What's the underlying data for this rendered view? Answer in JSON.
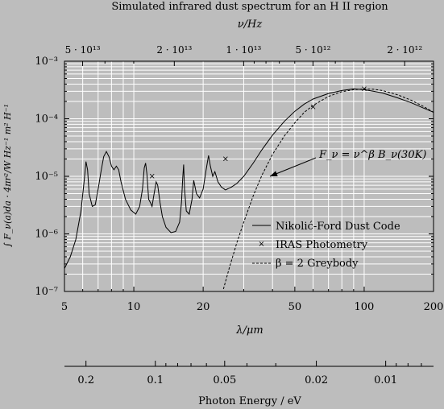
{
  "chart_data": {
    "type": "line",
    "title": "Simulated infrared dust spectrum for an H II region",
    "xlabel": "λ/μm",
    "top_axis_label": "ν/Hz",
    "ylabel": "∫ F_ν(a)da · 4πr²/W Hz⁻¹ m² H⁻¹",
    "bottom_axis2_label": "Photon Energy / eV",
    "x_scale": "log",
    "y_scale": "log",
    "xlim": [
      5,
      200
    ],
    "ylim": [
      1e-07,
      0.001
    ],
    "grid": true,
    "x_ticks": [
      {
        "value": 5,
        "label": "5"
      },
      {
        "value": 10,
        "label": "10"
      },
      {
        "value": 20,
        "label": "20"
      },
      {
        "value": 50,
        "label": "50"
      },
      {
        "value": 100,
        "label": "100"
      },
      {
        "value": 200,
        "label": "200"
      }
    ],
    "y_ticks": [
      {
        "value": 1e-07,
        "label": "10⁻⁷"
      },
      {
        "value": 1e-06,
        "label": "10⁻⁶"
      },
      {
        "value": 1e-05,
        "label": "10⁻⁵"
      },
      {
        "value": 0.0001,
        "label": "10⁻⁴"
      },
      {
        "value": 0.001,
        "label": "10⁻³"
      }
    ],
    "top_ticks": [
      {
        "value": 50000000000000.0,
        "label": "5 · 10¹³"
      },
      {
        "value": 20000000000000.0,
        "label": "2 · 10¹³"
      },
      {
        "value": 10000000000000.0,
        "label": "1 · 10¹³"
      },
      {
        "value": 5000000000000.0,
        "label": "5 · 10¹²"
      },
      {
        "value": 2000000000000.0,
        "label": "2 · 10¹²"
      }
    ],
    "energy_ticks": [
      {
        "value": 0.2,
        "label": "0.2"
      },
      {
        "value": 0.1,
        "label": "0.1"
      },
      {
        "value": 0.05,
        "label": "0.05"
      },
      {
        "value": 0.02,
        "label": "0.02"
      },
      {
        "value": 0.01,
        "label": "0.01"
      }
    ],
    "series": [
      {
        "name": "Nikolić-Ford Dust Code",
        "style": "solid",
        "x": [
          5.0,
          5.3,
          5.6,
          5.9,
          6.1,
          6.2,
          6.3,
          6.4,
          6.6,
          6.8,
          7.0,
          7.2,
          7.4,
          7.6,
          7.8,
          8.0,
          8.2,
          8.4,
          8.6,
          8.8,
          9.2,
          9.7,
          10.2,
          10.6,
          10.9,
          11.1,
          11.25,
          11.4,
          11.6,
          11.8,
          12.0,
          12.2,
          12.5,
          12.7,
          13.0,
          13.3,
          13.8,
          14.5,
          15.2,
          15.8,
          16.1,
          16.3,
          16.45,
          16.6,
          16.9,
          17.4,
          17.9,
          18.2,
          18.7,
          19.3,
          20.0,
          20.6,
          21.1,
          21.5,
          22.0,
          22.5,
          23.2,
          24.0,
          25.0,
          26.5,
          28.0,
          30.0,
          33.0,
          36.0,
          40.0,
          45.0,
          50.0,
          55.0,
          60.0,
          70.0,
          80.0,
          90.0,
          100.0,
          110.0,
          120.0,
          140.0,
          160.0,
          180.0,
          200.0
        ],
        "y": [
          2.5e-07,
          4e-07,
          8e-07,
          2.5e-06,
          9e-06,
          1.8e-05,
          1.3e-05,
          5e-06,
          3e-06,
          3.2e-06,
          6e-06,
          1.2e-05,
          2.2e-05,
          2.7e-05,
          2.2e-05,
          1.5e-05,
          1.3e-05,
          1.5e-05,
          1.3e-05,
          8e-06,
          4e-06,
          2.6e-06,
          2.2e-06,
          3e-06,
          6e-06,
          1.4e-05,
          1.7e-05,
          1.1e-05,
          4e-06,
          3.5e-06,
          3e-06,
          4.5e-06,
          8e-06,
          7e-06,
          3.5e-06,
          2e-06,
          1.3e-06,
          1.05e-06,
          1.1e-06,
          1.6e-06,
          3.5e-06,
          9e-06,
          1.6e-05,
          6e-06,
          2.5e-06,
          2.2e-06,
          4e-06,
          8.5e-06,
          5e-06,
          4.2e-06,
          6e-06,
          1.3e-05,
          2.3e-05,
          1.5e-05,
          1e-05,
          1.2e-05,
          8e-06,
          6.5e-06,
          5.8e-06,
          6.5e-06,
          7.5e-06,
          1e-05,
          1.7e-05,
          2.9e-05,
          5.2e-05,
          9e-05,
          0.000135,
          0.00018,
          0.00022,
          0.000275,
          0.00031,
          0.00033,
          0.00032,
          0.0003,
          0.00028,
          0.00023,
          0.00019,
          0.000155,
          0.00013
        ]
      },
      {
        "name": "IRAS Photometry",
        "style": "marker-x",
        "x": [
          12,
          25,
          60,
          100
        ],
        "y": [
          1e-05,
          2e-05,
          0.00016,
          0.00033
        ]
      },
      {
        "name": "β = 2 Greybody",
        "style": "dashed",
        "x": [
          24.5,
          26.0,
          28.0,
          30.0,
          33.0,
          36.0,
          40.0,
          45.0,
          50.0,
          55.0,
          60.0,
          70.0,
          80.0,
          90.0,
          100.0,
          110.0,
          120.0,
          140.0,
          160.0,
          180.0,
          200.0
        ],
        "y": [
          1.1e-07,
          2.6e-07,
          7e-07,
          1.6e-06,
          4.6e-06,
          1.05e-05,
          2.4e-05,
          5e-05,
          8.5e-05,
          0.00013,
          0.00017,
          0.000245,
          0.000295,
          0.00032,
          0.00033,
          0.000325,
          0.00031,
          0.00026,
          0.00021,
          0.000165,
          0.00013
        ]
      }
    ],
    "annotation": {
      "text": "F_ν = ν^β B_ν(30K)",
      "points_to": {
        "x": 39,
        "y": 1e-05
      }
    },
    "legend_position": "center-right"
  }
}
